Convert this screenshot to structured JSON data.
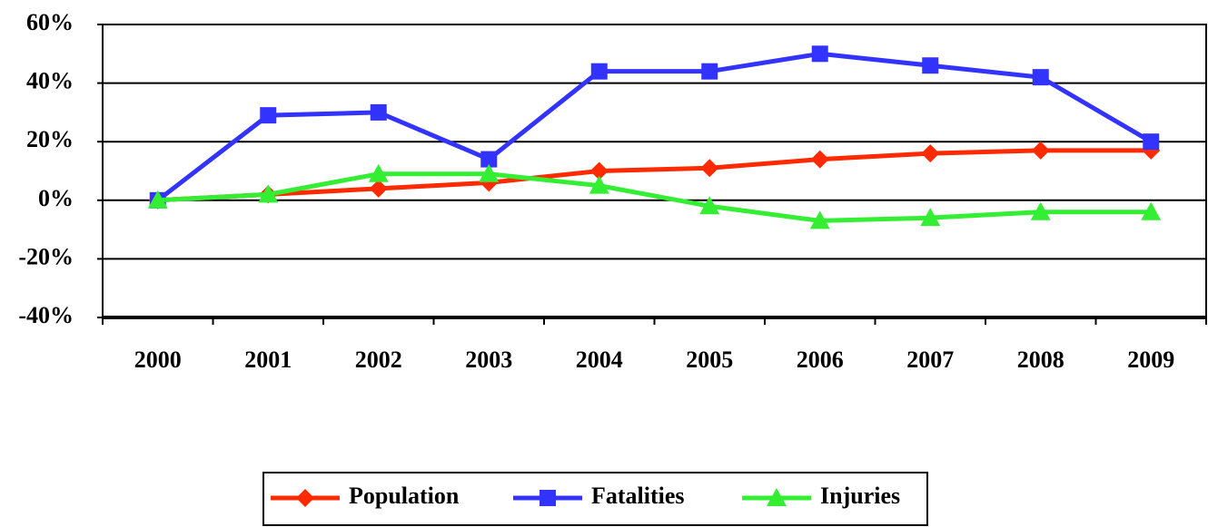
{
  "chart_data": {
    "type": "line",
    "categories": [
      "2000",
      "2001",
      "2002",
      "2003",
      "2004",
      "2005",
      "2006",
      "2007",
      "2008",
      "2009"
    ],
    "series": [
      {
        "name": "Population",
        "color": "#ff2a00",
        "marker": "diamond",
        "values": [
          0,
          2,
          4,
          6,
          10,
          11,
          14,
          16,
          17,
          17
        ]
      },
      {
        "name": "Fatalities",
        "color": "#3333ff",
        "marker": "square",
        "values": [
          0,
          29,
          30,
          14,
          44,
          44,
          50,
          46,
          42,
          20
        ]
      },
      {
        "name": "Injuries",
        "color": "#33ee33",
        "marker": "triangle",
        "values": [
          0,
          2,
          9,
          9,
          5,
          -2,
          -7,
          -6,
          -4,
          -4
        ]
      }
    ],
    "ylim": [
      -40,
      60
    ],
    "yticks": [
      {
        "value": -40,
        "label": "-40%"
      },
      {
        "value": -20,
        "label": "-20%"
      },
      {
        "value": 0,
        "label": "0%"
      },
      {
        "value": 20,
        "label": "20%"
      },
      {
        "value": 40,
        "label": "40%"
      },
      {
        "value": 60,
        "label": "60%"
      }
    ],
    "grid": true,
    "legend": "bottom"
  }
}
